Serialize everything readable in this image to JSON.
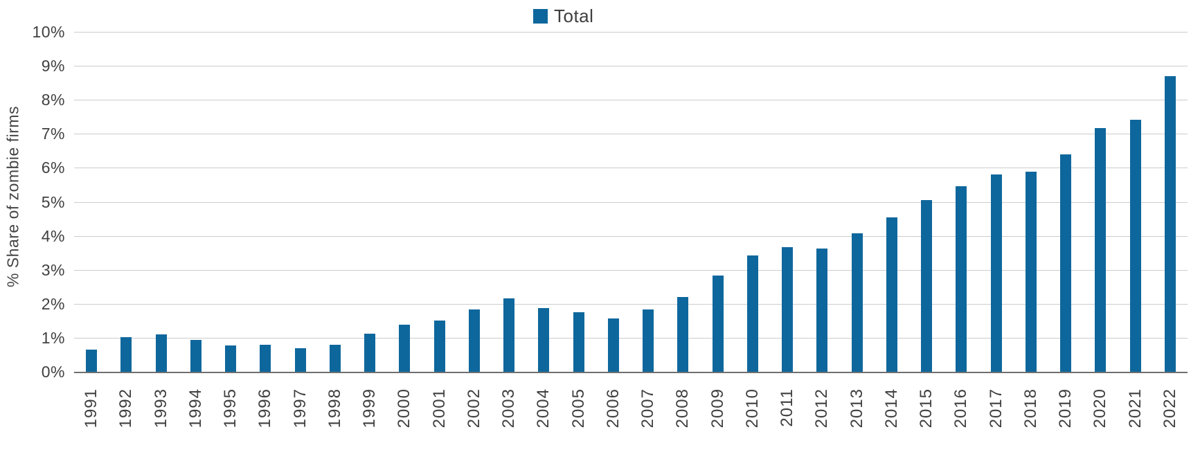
{
  "chart_data": {
    "type": "bar",
    "title": "",
    "legend": {
      "label": "Total",
      "position": "top-center",
      "swatch_color": "#0e679c"
    },
    "ylabel": "% Share of zombie firms",
    "xlabel": "",
    "ylim": [
      0,
      10
    ],
    "ytick_labels": [
      "0%",
      "1%",
      "2%",
      "3%",
      "4%",
      "5%",
      "6%",
      "7%",
      "8%",
      "9%",
      "10%"
    ],
    "grid": "horizontal-only",
    "categories": [
      "1991",
      "1992",
      "1993",
      "1994",
      "1995",
      "1996",
      "1997",
      "1998",
      "1999",
      "2000",
      "2001",
      "2002",
      "2003",
      "2004",
      "2005",
      "2006",
      "2007",
      "2008",
      "2009",
      "2010",
      "2011",
      "2012",
      "2013",
      "2014",
      "2015",
      "2016",
      "2017",
      "2018",
      "2019",
      "2020",
      "2021",
      "2022"
    ],
    "series": [
      {
        "name": "Total",
        "color": "#0e679c",
        "values": [
          0.65,
          1.01,
          1.09,
          0.93,
          0.77,
          0.8,
          0.69,
          0.8,
          1.13,
          1.38,
          1.5,
          1.83,
          2.15,
          1.87,
          1.75,
          1.56,
          1.83,
          2.19,
          2.84,
          3.43,
          3.67,
          3.63,
          4.07,
          4.55,
          5.05,
          5.46,
          5.81,
          5.88,
          6.4,
          7.17,
          7.41,
          8.7
        ]
      }
    ]
  },
  "colors": {
    "bar": "#0e679c",
    "gridline": "#cccccc",
    "zero_axis_line": "#6f6f6f",
    "tick_text": "#404040",
    "axis_title_text": "#454545",
    "legend_text": "#3e3e3e",
    "background": "#ffffff"
  }
}
